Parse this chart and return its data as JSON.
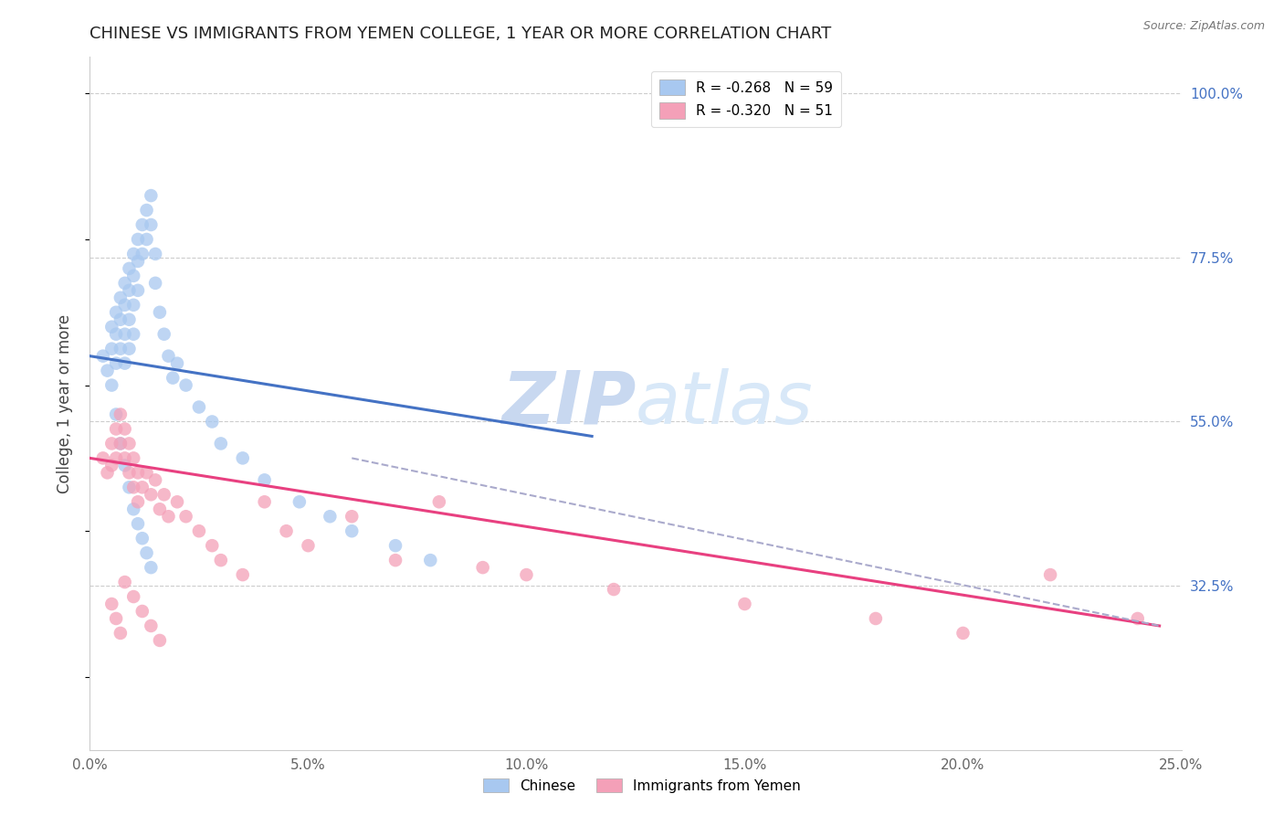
{
  "title": "CHINESE VS IMMIGRANTS FROM YEMEN COLLEGE, 1 YEAR OR MORE CORRELATION CHART",
  "source": "Source: ZipAtlas.com",
  "ylabel": "College, 1 year or more",
  "xlim": [
    0.0,
    0.25
  ],
  "ylim": [
    0.1,
    1.05
  ],
  "x_tick_vals": [
    0.0,
    0.05,
    0.1,
    0.15,
    0.2,
    0.25
  ],
  "x_tick_labels": [
    "0.0%",
    "5.0%",
    "10.0%",
    "15.0%",
    "20.0%",
    "25.0%"
  ],
  "y_tick_vals": [
    0.325,
    0.55,
    0.775,
    1.0
  ],
  "y_tick_labels": [
    "32.5%",
    "55.0%",
    "77.5%",
    "100.0%"
  ],
  "legend_entries": [
    {
      "label": "R = -0.268   N = 59",
      "color": "#A8C8F0"
    },
    {
      "label": "R = -0.320   N = 51",
      "color": "#F4A0B8"
    }
  ],
  "chinese_scatter_x": [
    0.003,
    0.004,
    0.005,
    0.005,
    0.006,
    0.006,
    0.006,
    0.007,
    0.007,
    0.007,
    0.008,
    0.008,
    0.008,
    0.008,
    0.009,
    0.009,
    0.009,
    0.009,
    0.01,
    0.01,
    0.01,
    0.01,
    0.011,
    0.011,
    0.011,
    0.012,
    0.012,
    0.013,
    0.013,
    0.014,
    0.014,
    0.015,
    0.015,
    0.016,
    0.017,
    0.018,
    0.019,
    0.02,
    0.022,
    0.025,
    0.028,
    0.03,
    0.035,
    0.04,
    0.048,
    0.055,
    0.06,
    0.07,
    0.078,
    0.005,
    0.006,
    0.007,
    0.008,
    0.009,
    0.01,
    0.011,
    0.012,
    0.013,
    0.014
  ],
  "chinese_scatter_y": [
    0.64,
    0.62,
    0.68,
    0.65,
    0.7,
    0.67,
    0.63,
    0.72,
    0.69,
    0.65,
    0.74,
    0.71,
    0.67,
    0.63,
    0.76,
    0.73,
    0.69,
    0.65,
    0.78,
    0.75,
    0.71,
    0.67,
    0.8,
    0.77,
    0.73,
    0.82,
    0.78,
    0.84,
    0.8,
    0.86,
    0.82,
    0.78,
    0.74,
    0.7,
    0.67,
    0.64,
    0.61,
    0.63,
    0.6,
    0.57,
    0.55,
    0.52,
    0.5,
    0.47,
    0.44,
    0.42,
    0.4,
    0.38,
    0.36,
    0.6,
    0.56,
    0.52,
    0.49,
    0.46,
    0.43,
    0.41,
    0.39,
    0.37,
    0.35
  ],
  "yemen_scatter_x": [
    0.003,
    0.004,
    0.005,
    0.005,
    0.006,
    0.006,
    0.007,
    0.007,
    0.008,
    0.008,
    0.009,
    0.009,
    0.01,
    0.01,
    0.011,
    0.011,
    0.012,
    0.013,
    0.014,
    0.015,
    0.016,
    0.017,
    0.018,
    0.02,
    0.022,
    0.025,
    0.028,
    0.03,
    0.035,
    0.04,
    0.045,
    0.05,
    0.06,
    0.07,
    0.08,
    0.09,
    0.1,
    0.12,
    0.15,
    0.18,
    0.2,
    0.22,
    0.24,
    0.005,
    0.006,
    0.007,
    0.008,
    0.01,
    0.012,
    0.014,
    0.016
  ],
  "yemen_scatter_y": [
    0.5,
    0.48,
    0.52,
    0.49,
    0.54,
    0.5,
    0.56,
    0.52,
    0.54,
    0.5,
    0.52,
    0.48,
    0.5,
    0.46,
    0.48,
    0.44,
    0.46,
    0.48,
    0.45,
    0.47,
    0.43,
    0.45,
    0.42,
    0.44,
    0.42,
    0.4,
    0.38,
    0.36,
    0.34,
    0.44,
    0.4,
    0.38,
    0.42,
    0.36,
    0.44,
    0.35,
    0.34,
    0.32,
    0.3,
    0.28,
    0.26,
    0.34,
    0.28,
    0.3,
    0.28,
    0.26,
    0.33,
    0.31,
    0.29,
    0.27,
    0.25
  ],
  "blue_line_x": [
    0.0,
    0.115
  ],
  "blue_line_y": [
    0.64,
    0.53
  ],
  "pink_line_x": [
    0.0,
    0.245
  ],
  "pink_line_y": [
    0.5,
    0.27
  ],
  "dashed_line_x": [
    0.06,
    0.245
  ],
  "dashed_line_y": [
    0.5,
    0.27
  ],
  "blue_scatter_color": "#A8C8F0",
  "pink_scatter_color": "#F4A0B8",
  "blue_line_color": "#4472C4",
  "pink_line_color": "#E84080",
  "dashed_line_color": "#AAAACC",
  "watermark_zip": "ZIP",
  "watermark_atlas": "atlas",
  "watermark_color": "#C8D8F0",
  "background_color": "#FFFFFF",
  "grid_color": "#CCCCCC",
  "bottom_legend_chinese": "Chinese",
  "bottom_legend_yemen": "Immigrants from Yemen"
}
